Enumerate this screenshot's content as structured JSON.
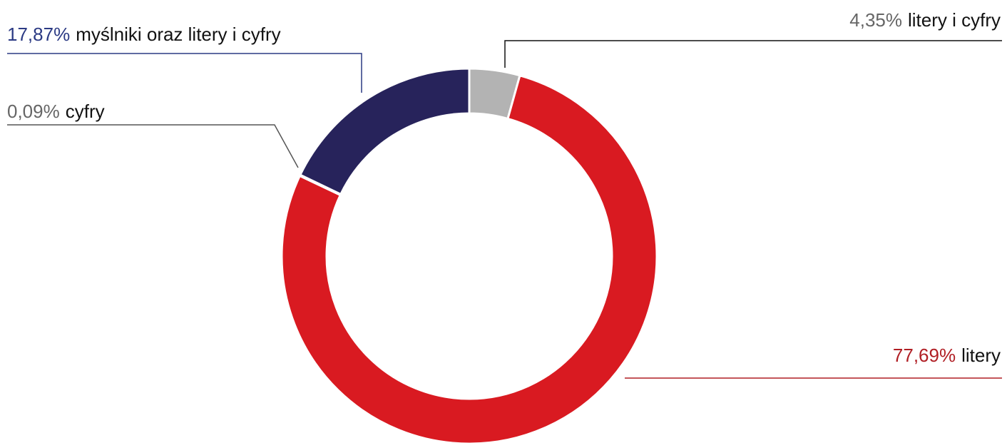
{
  "chart_data": {
    "type": "pie",
    "categories": [
      "litery i cyfry",
      "litery",
      "cyfry",
      "myślniki oraz litery i cyfry"
    ],
    "values": [
      4.35,
      77.69,
      0.09,
      17.87
    ],
    "value_labels": [
      "4,35%",
      "77,69%",
      "0,09%",
      "17,87%"
    ],
    "colors": [
      "#b3b3b3",
      "#d91a21",
      "#707070",
      "#27235b"
    ]
  }
}
